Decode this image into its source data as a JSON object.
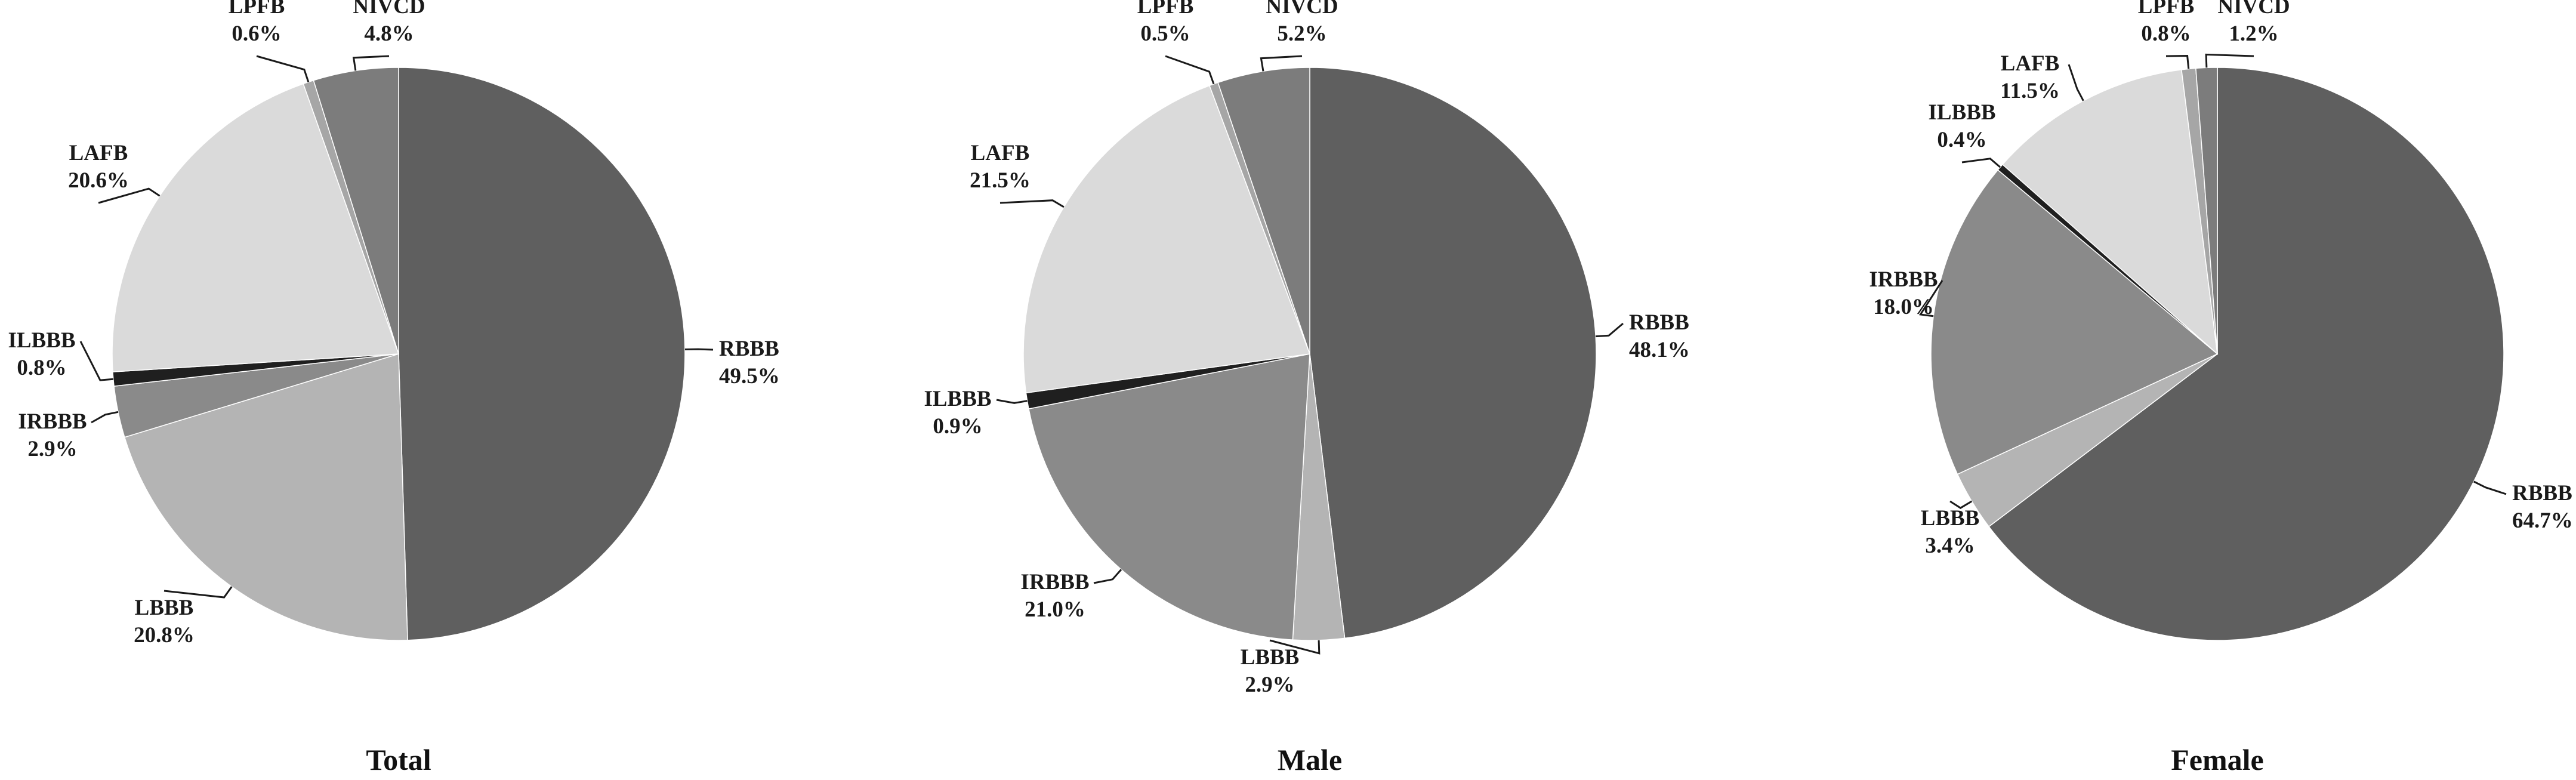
{
  "chart_data": [
    {
      "type": "pie",
      "title": "Total",
      "slices": [
        {
          "label": "RBBB",
          "value": 49.5,
          "display": "49.5%",
          "color": "#5f5f5f"
        },
        {
          "label": "LBBB",
          "value": 20.8,
          "display": "20.8%",
          "color": "#b4b4b4"
        },
        {
          "label": "IRBBB",
          "value": 2.9,
          "display": "2.9%",
          "color": "#8a8a8a"
        },
        {
          "label": "ILBBB",
          "value": 0.8,
          "display": "0.8%",
          "color": "#1f1f1f"
        },
        {
          "label": "LAFB",
          "value": 20.6,
          "display": "20.6%",
          "color": "#dadada"
        },
        {
          "label": "LPFB",
          "value": 0.6,
          "display": "0.6%",
          "color": "#a6a6a6"
        },
        {
          "label": "NIVCD",
          "value": 4.8,
          "display": "4.8%",
          "color": "#7c7c7c"
        }
      ]
    },
    {
      "type": "pie",
      "title": "Male",
      "slices": [
        {
          "label": "RBBB",
          "value": 48.1,
          "display": "48.1%",
          "color": "#5f5f5f"
        },
        {
          "label": "LBBB",
          "value": 2.9,
          "display": "2.9%",
          "color": "#b4b4b4"
        },
        {
          "label": "IRBBB",
          "value": 21.0,
          "display": "21.0%",
          "color": "#8a8a8a"
        },
        {
          "label": "ILBBB",
          "value": 0.9,
          "display": "0.9%",
          "color": "#1f1f1f"
        },
        {
          "label": "LAFB",
          "value": 21.5,
          "display": "21.5%",
          "color": "#dadada"
        },
        {
          "label": "LPFB",
          "value": 0.5,
          "display": "0.5%",
          "color": "#a6a6a6"
        },
        {
          "label": "NIVCD",
          "value": 5.2,
          "display": "5.2%",
          "color": "#7c7c7c"
        }
      ]
    },
    {
      "type": "pie",
      "title": "Female",
      "slices": [
        {
          "label": "RBBB",
          "value": 64.7,
          "display": "64.7%",
          "color": "#5f5f5f"
        },
        {
          "label": "LBBB",
          "value": 3.4,
          "display": "3.4%",
          "color": "#b4b4b4"
        },
        {
          "label": "IRBBB",
          "value": 18.0,
          "display": "18.0%",
          "color": "#8a8a8a"
        },
        {
          "label": "ILBBB",
          "value": 0.4,
          "display": "0.4%",
          "color": "#1f1f1f"
        },
        {
          "label": "LAFB",
          "value": 11.5,
          "display": "11.5%",
          "color": "#dadada"
        },
        {
          "label": "LPFB",
          "value": 0.8,
          "display": "0.8%",
          "color": "#a6a6a6"
        },
        {
          "label": "NIVCD",
          "value": 1.2,
          "display": "1.2%",
          "color": "#7c7c7c"
        }
      ]
    }
  ]
}
